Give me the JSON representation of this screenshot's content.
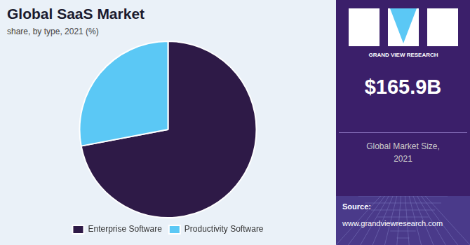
{
  "chart_data": {
    "type": "pie",
    "title": "Global SaaS Market",
    "subtitle": "share, by type, 2021 (%)",
    "categories": [
      "Enterprise Software",
      "Productivity Software"
    ],
    "values": [
      72,
      28
    ],
    "colors": [
      "#2E1A47",
      "#5BC8F5"
    ],
    "legend": "bottom",
    "annotations": [
      "GRAND VIEW RESEARCH",
      "$165.9B",
      "Global Market Size,\n2021",
      "Source:",
      "www.grandviewresearch.com"
    ]
  }
}
